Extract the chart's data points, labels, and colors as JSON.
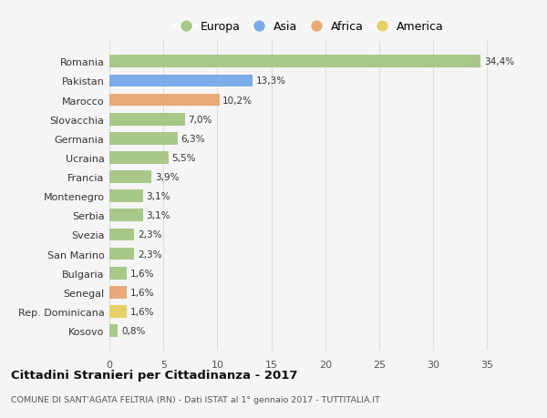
{
  "countries": [
    "Romania",
    "Pakistan",
    "Marocco",
    "Slovacchia",
    "Germania",
    "Ucraina",
    "Francia",
    "Montenegro",
    "Serbia",
    "Svezia",
    "San Marino",
    "Bulgaria",
    "Senegal",
    "Rep. Dominicana",
    "Kosovo"
  ],
  "values": [
    34.4,
    13.3,
    10.2,
    7.0,
    6.3,
    5.5,
    3.9,
    3.1,
    3.1,
    2.3,
    2.3,
    1.6,
    1.6,
    1.6,
    0.8
  ],
  "labels": [
    "34,4%",
    "13,3%",
    "10,2%",
    "7,0%",
    "6,3%",
    "5,5%",
    "3,9%",
    "3,1%",
    "3,1%",
    "2,3%",
    "2,3%",
    "1,6%",
    "1,6%",
    "1,6%",
    "0,8%"
  ],
  "continents": [
    "Europa",
    "Asia",
    "Africa",
    "Europa",
    "Europa",
    "Europa",
    "Europa",
    "Europa",
    "Europa",
    "Europa",
    "Europa",
    "Europa",
    "Africa",
    "America",
    "Europa"
  ],
  "colors": {
    "Europa": "#a8c88a",
    "Asia": "#7aace8",
    "Africa": "#e8aa78",
    "America": "#e8d068"
  },
  "legend_order": [
    "Europa",
    "Asia",
    "Africa",
    "America"
  ],
  "xlim": [
    0,
    37
  ],
  "xticks": [
    0,
    5,
    10,
    15,
    20,
    25,
    30,
    35
  ],
  "title": "Cittadini Stranieri per Cittadinanza - 2017",
  "subtitle": "COMUNE DI SANT'AGATA FELTRIA (RN) - Dati ISTAT al 1° gennaio 2017 - TUTTITALIA.IT",
  "background_color": "#f5f5f5",
  "grid_color": "#dddddd"
}
